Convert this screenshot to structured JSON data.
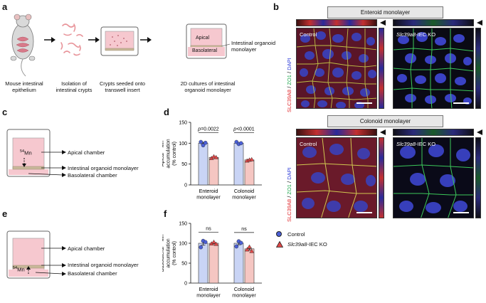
{
  "panels": {
    "a": "a",
    "b": "b",
    "c": "c",
    "d": "d",
    "e": "e",
    "f": "f"
  },
  "workflow": {
    "step1": [
      "Mouse intestinal",
      "epithelium"
    ],
    "step2": [
      "Isolation of",
      "intestinal crypts"
    ],
    "step3": [
      "Crypts seeded onto",
      "transwell insert"
    ],
    "step4": [
      "2D cultures of intestinal",
      "organoid monolayer"
    ],
    "apical": "Apical",
    "basolateral": "Basolateral",
    "monolayer_callout": [
      "Intestinal organoid",
      "monolayer"
    ]
  },
  "microscopy": {
    "enteroid_header": "Enteroid monolayer",
    "colonoid_header": "Colonoid monolayer",
    "control": "Control",
    "ko_gene": "Slc39a8",
    "ko_suffix": "-IEC KO",
    "stain_red": "SLC39A8",
    "stain_sep1": " / ",
    "stain_green": "ZO1",
    "stain_sep2": " / ",
    "stain_blue": "DAPI"
  },
  "schematic_c": {
    "isotope": "54Mn",
    "apical": "Apical chamber",
    "monolayer": "Intestinal organoid monolayer",
    "basolateral": "Basolateral chamber"
  },
  "schematic_e": {
    "isotope": "54Mn",
    "apical": "Apical chamber",
    "monolayer": "Intestinal organoid monolayer",
    "basolateral": "Basolateral chamber"
  },
  "legend": {
    "control": "Control",
    "ko_gene": "Slc39a8",
    "ko_suffix": "-IEC KO",
    "control_color": "#4a5fd6",
    "ko_color": "#e04848"
  },
  "chart_data": [
    {
      "panel": "d",
      "type": "bar",
      "ylabel": [
        "Apical 54Mn",
        "accumulation",
        "(% control)"
      ],
      "ylim": [
        0,
        150
      ],
      "yticks": [
        0,
        50,
        100,
        150
      ],
      "categories": [
        [
          "Enteroid",
          "monolayer"
        ],
        [
          "Colonoid",
          "monolayer"
        ]
      ],
      "series": [
        {
          "name": "Control",
          "values": [
            100,
            100
          ],
          "points": [
            [
              103,
              95,
              101
            ],
            [
              103,
              98,
              100
            ]
          ]
        },
        {
          "name": "Slc39a8-IEC KO",
          "values": [
            66,
            60
          ],
          "points": [
            [
              64,
              68,
              66
            ],
            [
              58,
              60,
              61
            ]
          ]
        }
      ],
      "annotations": [
        "p=0.0022",
        "p<0.0001"
      ]
    },
    {
      "panel": "f",
      "type": "bar",
      "ylabel": [
        "Basolateral 54Mn",
        "accumulation",
        "(% control)"
      ],
      "ylim": [
        0,
        150
      ],
      "yticks": [
        0,
        50,
        100,
        150
      ],
      "categories": [
        [
          "Enteroid",
          "monolayer"
        ],
        [
          "Colonoid",
          "monolayer"
        ]
      ],
      "series": [
        {
          "name": "Control",
          "values": [
            100,
            100
          ],
          "points": [
            [
              90,
              106,
              103
            ],
            [
              92,
              105,
              101
            ]
          ]
        },
        {
          "name": "Slc39a8-IEC KO",
          "values": [
            100,
            86
          ],
          "points": [
            [
              99,
              103,
              98
            ],
            [
              84,
              91,
              80
            ]
          ]
        }
      ],
      "annotations": [
        "ns",
        "ns"
      ]
    }
  ]
}
